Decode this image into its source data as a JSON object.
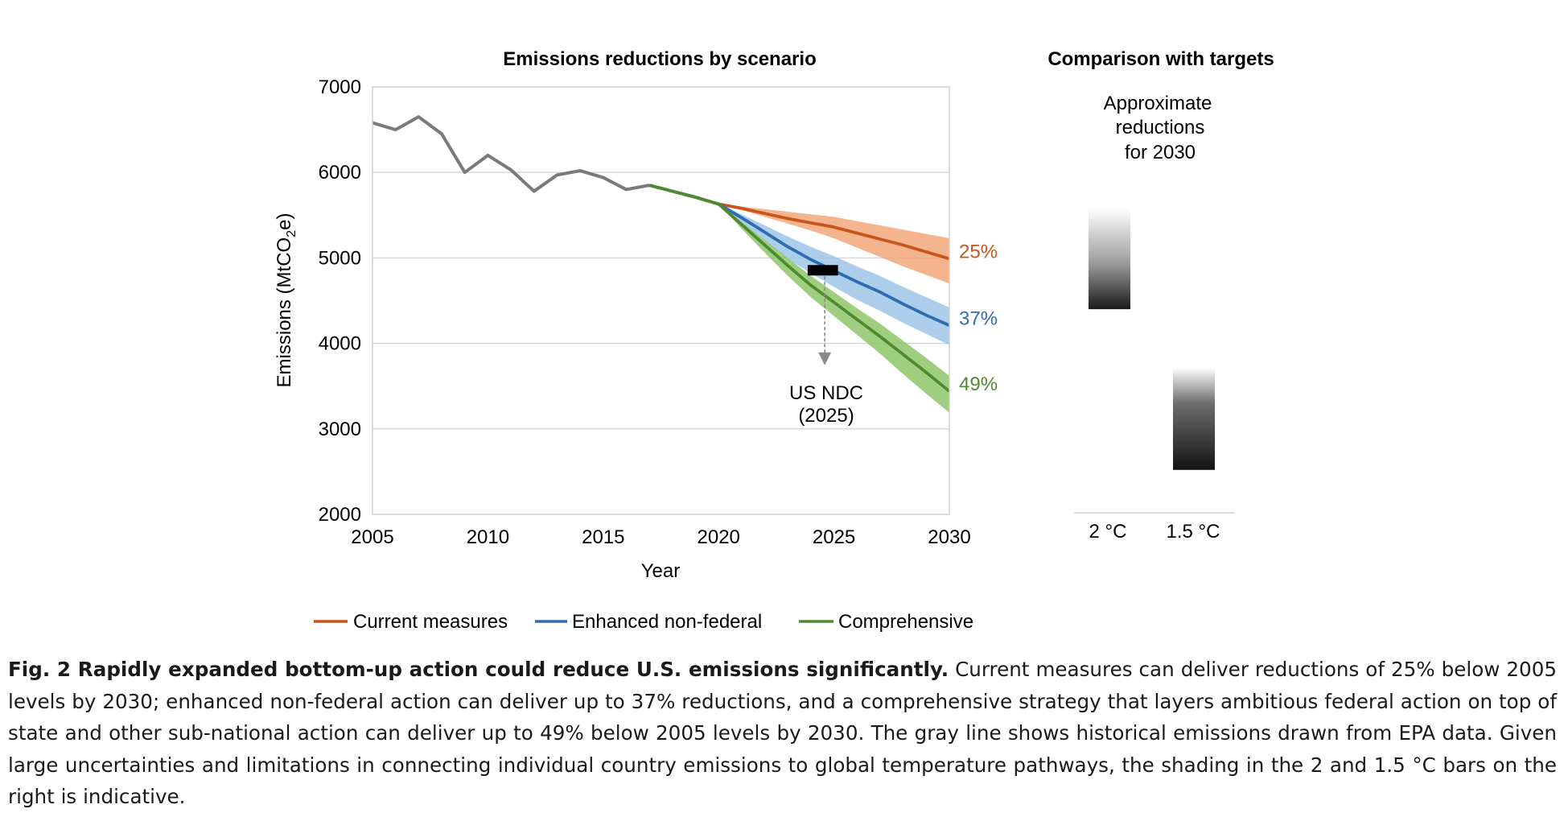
{
  "chart_data": [
    {
      "type": "line",
      "title": "Emissions reductions by scenario",
      "xlabel": "Year",
      "ylabel": "Emissions (MtCO2e)",
      "xlim": [
        2005,
        2030
      ],
      "ylim": [
        2000,
        7000
      ],
      "x_ticks": [
        2005,
        2010,
        2015,
        2020,
        2025,
        2030
      ],
      "y_ticks": [
        2000,
        3000,
        4000,
        5000,
        6000,
        7000
      ],
      "grid": "horizontal",
      "legend_position": "bottom",
      "historical": {
        "color": "#7a7a7a",
        "x": [
          2005,
          2006,
          2007,
          2008,
          2009,
          2010,
          2011,
          2012,
          2013,
          2014,
          2015,
          2016,
          2017
        ],
        "y": [
          6580,
          6500,
          6650,
          6450,
          6000,
          6200,
          6030,
          5780,
          5970,
          6020,
          5940,
          5800,
          5850
        ]
      },
      "series": [
        {
          "name": "Current measures",
          "color": "#c8561c",
          "band_color": "#f2a77a",
          "end_label": "25%",
          "x": [
            2017,
            2018,
            2019,
            2020,
            2021,
            2022,
            2023,
            2024,
            2025,
            2026,
            2027,
            2028,
            2029,
            2030
          ],
          "y": [
            5850,
            5780,
            5710,
            5630,
            5580,
            5520,
            5460,
            5410,
            5360,
            5290,
            5220,
            5150,
            5070,
            4990
          ],
          "upper": [
            5850,
            5780,
            5710,
            5630,
            5600,
            5570,
            5540,
            5510,
            5480,
            5430,
            5380,
            5330,
            5280,
            5230
          ],
          "lower": [
            5850,
            5780,
            5710,
            5630,
            5560,
            5480,
            5400,
            5320,
            5230,
            5120,
            5010,
            4900,
            4800,
            4700
          ]
        },
        {
          "name": "Enhanced non-federal",
          "color": "#2e6db0",
          "band_color": "#9fc5e8",
          "end_label": "37%",
          "x": [
            2017,
            2018,
            2019,
            2020,
            2021,
            2022,
            2023,
            2024,
            2025,
            2026,
            2027,
            2028,
            2029,
            2030
          ],
          "y": [
            5850,
            5780,
            5710,
            5630,
            5470,
            5300,
            5130,
            4980,
            4850,
            4720,
            4600,
            4460,
            4330,
            4210
          ],
          "upper": [
            5850,
            5780,
            5710,
            5630,
            5510,
            5380,
            5250,
            5130,
            5020,
            4900,
            4790,
            4660,
            4540,
            4420
          ],
          "lower": [
            5850,
            5780,
            5710,
            5630,
            5420,
            5200,
            4990,
            4820,
            4660,
            4510,
            4380,
            4240,
            4110,
            3980
          ]
        },
        {
          "name": "Comprehensive",
          "color": "#4e8b2e",
          "band_color": "#8fc66a",
          "end_label": "49%",
          "x": [
            2017,
            2018,
            2019,
            2020,
            2021,
            2022,
            2023,
            2024,
            2025,
            2026,
            2027,
            2028,
            2029,
            2030
          ],
          "y": [
            5850,
            5780,
            5710,
            5630,
            5390,
            5150,
            4910,
            4680,
            4480,
            4280,
            4080,
            3870,
            3660,
            3440
          ],
          "upper": [
            5850,
            5780,
            5710,
            5630,
            5420,
            5210,
            5000,
            4790,
            4600,
            4410,
            4230,
            4030,
            3830,
            3620
          ],
          "lower": [
            5850,
            5780,
            5710,
            5630,
            5340,
            5060,
            4790,
            4540,
            4320,
            4100,
            3880,
            3640,
            3410,
            3190
          ]
        }
      ],
      "annotation": {
        "label_line1": "US NDC",
        "label_line2": "(2025)",
        "bar_x_range": [
          2024,
          2025
        ],
        "bar_y": 4860,
        "arrow_to_y": 3820,
        "color": "#000000"
      }
    },
    {
      "type": "bar",
      "title": "Comparison with targets",
      "subtitle_lines": [
        "Approximate",
        "reductions",
        "for 2030"
      ],
      "categories": [
        "2 °C",
        "1.5 °C"
      ],
      "shading": "indicative gradient",
      "ylim": [
        2000,
        7000
      ],
      "bars": [
        {
          "category": "2 °C",
          "bottom": 4400,
          "top": 5580
        },
        {
          "category": "1.5 °C",
          "bottom": 2520,
          "top": 3720
        }
      ]
    }
  ],
  "caption": {
    "heading": "Fig. 2 Rapidly expanded bottom-up action could reduce U.S. emissions significantly.",
    "body": " Current measures can deliver reductions of 25% below 2005 levels by 2030; enhanced non-federal action can deliver up to 37% reductions, and a comprehensive strategy that layers ambitious federal action on top of state and other sub-national action can deliver up to 49% below 2005 levels by 2030. The gray line shows historical emissions drawn from EPA data. Given large uncertainties and limitations in connecting individual country emissions to global temperature pathways, the shading in the 2 and 1.5 °C bars on the right is indicative."
  }
}
